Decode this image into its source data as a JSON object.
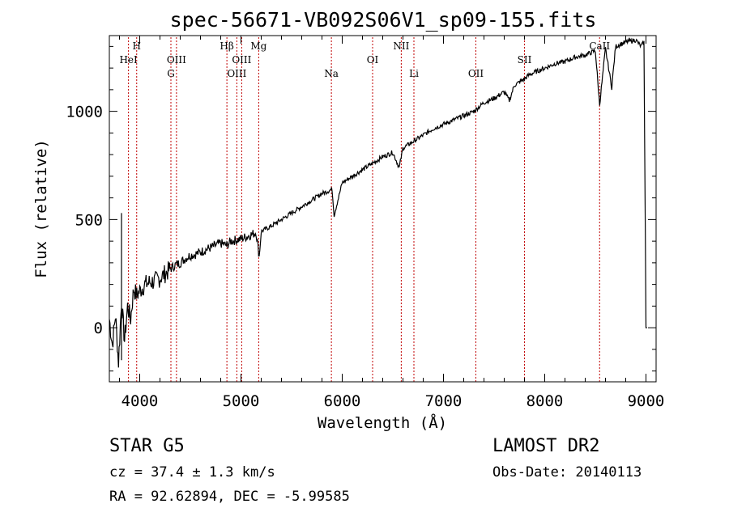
{
  "title": "spec-56671-VB092S06V1_sp09-155.fits",
  "xlabel": "Wavelength (Å)",
  "ylabel": "Flux (relative)",
  "footer": {
    "class_text": "STAR    G5",
    "survey": "LAMOST DR2",
    "cz": "cz = 37.4 ± 1.3 km/s",
    "obs_date": "Obs-Date: 20140113",
    "radec": "RA =  92.62894, DEC =  -5.99585"
  },
  "chart_data": {
    "type": "line",
    "title": "spec-56671-VB092S06V1_sp09-155.fits",
    "xlabel": "Wavelength (Å)",
    "ylabel": "Flux (relative)",
    "xlim": [
      3700,
      9100
    ],
    "ylim": [
      -250,
      1350
    ],
    "xticks": [
      4000,
      5000,
      6000,
      7000,
      8000,
      9000
    ],
    "yticks": [
      0,
      500,
      1000
    ],
    "grid": false,
    "line_color": "#000000",
    "marker_color": "#c00000",
    "series": [
      {
        "x": [
          3700,
          3730,
          3760,
          3790,
          3820,
          3850,
          3880,
          3910,
          3940,
          3970,
          4000,
          4050,
          4100,
          4150,
          4200,
          4250,
          4300,
          4350,
          4400,
          4450,
          4500,
          4550,
          4600,
          4700,
          4800,
          4860,
          4900,
          5000,
          5100,
          5150,
          5180,
          5200,
          5300,
          5400,
          5500,
          5600,
          5700,
          5800,
          5900,
          5920,
          6000,
          6100,
          6200,
          6300,
          6400,
          6500,
          6563,
          6600,
          6700,
          6800,
          6900,
          7000,
          7100,
          7200,
          7300,
          7400,
          7500,
          7600,
          7650,
          7700,
          7800,
          7850,
          7900,
          8000,
          8100,
          8200,
          8300,
          8400,
          8500,
          8542,
          8600,
          8662,
          8700,
          8800,
          8900,
          8950,
          8980,
          9000,
          9010
        ],
        "y": [
          40,
          -80,
          60,
          -160,
          120,
          -60,
          100,
          40,
          180,
          150,
          170,
          200,
          210,
          215,
          230,
          250,
          270,
          290,
          300,
          320,
          335,
          340,
          350,
          370,
          390,
          380,
          400,
          410,
          430,
          440,
          330,
          445,
          470,
          500,
          530,
          560,
          590,
          620,
          640,
          520,
          670,
          700,
          730,
          760,
          790,
          810,
          740,
          830,
          860,
          890,
          920,
          940,
          960,
          980,
          1000,
          1040,
          1060,
          1090,
          1050,
          1120,
          1150,
          1170,
          1180,
          1200,
          1220,
          1230,
          1250,
          1260,
          1280,
          1030,
          1290,
          1110,
          1300,
          1320,
          1330,
          1300,
          1320,
          0,
          0
        ]
      }
    ],
    "lines": [
      {
        "label": "HeI",
        "wavelength": 3889,
        "row": 1
      },
      {
        "label": "H",
        "wavelength": 3970,
        "row": 0
      },
      {
        "label": "OIII",
        "wavelength": 4363,
        "row": 1
      },
      {
        "label": "G",
        "wavelength": 4308,
        "row": 2
      },
      {
        "label": "Hβ",
        "wavelength": 4861,
        "row": 0
      },
      {
        "label": "OIII",
        "wavelength": 5007,
        "row": 1
      },
      {
        "label": "OIII",
        "wavelength": 4959,
        "row": 2
      },
      {
        "label": "Mg",
        "wavelength": 5175,
        "row": 0
      },
      {
        "label": "Na",
        "wavelength": 5893,
        "row": 2
      },
      {
        "label": "OI",
        "wavelength": 6300,
        "row": 1
      },
      {
        "label": "NII",
        "wavelength": 6583,
        "row": 0
      },
      {
        "label": "Li",
        "wavelength": 6708,
        "row": 2
      },
      {
        "label": "OII",
        "wavelength": 7320,
        "row": 2
      },
      {
        "label": "SII",
        "wavelength": 7800,
        "row": 1
      },
      {
        "label": "CaII",
        "wavelength": 8542,
        "row": 0
      }
    ]
  }
}
